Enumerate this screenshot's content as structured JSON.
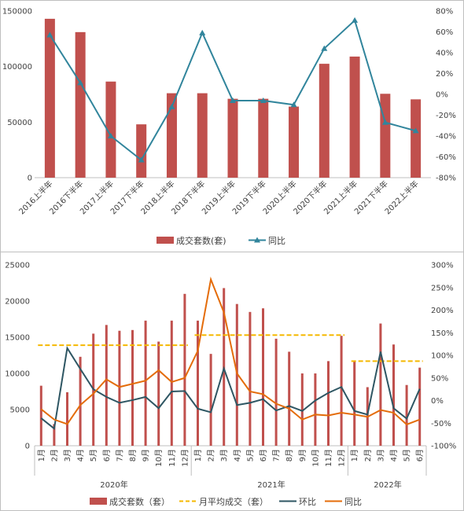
{
  "chart_data": [
    {
      "type": "bar",
      "categories": [
        "2016上半年",
        "2016下半年",
        "2017上半年",
        "2017下半年",
        "2018上半年",
        "2018下半年",
        "2019上半年",
        "2019下半年",
        "2020上半年",
        "2020下半年",
        "2021上半年",
        "2021下半年",
        "2022上半年"
      ],
      "series": [
        {
          "name": "成交套数(套)",
          "type": "bar",
          "axis": "left",
          "color": "#c0504d",
          "values": [
            143000,
            131000,
            86500,
            48000,
            76000,
            76000,
            71000,
            71000,
            64000,
            102500,
            109000,
            75500,
            70500
          ]
        },
        {
          "name": "同比",
          "type": "line",
          "axis": "right",
          "color": "#31859c",
          "marker": "triangle",
          "values": [
            57,
            11,
            -40,
            -63,
            -12,
            59,
            -6,
            -6,
            -10,
            44,
            71,
            -27,
            -35
          ]
        }
      ],
      "left_axis": {
        "min": 0,
        "max": 150000,
        "ticks": [
          "0",
          "50000",
          "100000",
          "150000"
        ]
      },
      "right_axis": {
        "min": -80,
        "max": 80,
        "ticks": [
          "-80%",
          "-60%",
          "-40%",
          "-20%",
          "0%",
          "20%",
          "40%",
          "60%",
          "80%"
        ]
      },
      "legend": {
        "position": "bottom",
        "items": [
          "成交套数(套)",
          "同比"
        ]
      }
    },
    {
      "type": "bar",
      "categories": [
        "1月",
        "2月",
        "3月",
        "4月",
        "5月",
        "6月",
        "7月",
        "8月",
        "9月",
        "10月",
        "11月",
        "12月",
        "1月",
        "2月",
        "3月",
        "4月",
        "5月",
        "6月",
        "7月",
        "8月",
        "9月",
        "10月",
        "11月",
        "12月",
        "1月",
        "2月",
        "3月",
        "4月",
        "5月",
        "6月"
      ],
      "year_groups": [
        {
          "label": "2020年",
          "start": 0,
          "end": 11
        },
        {
          "label": "2021年",
          "start": 12,
          "end": 23
        },
        {
          "label": "2022年",
          "start": 24,
          "end": 29
        }
      ],
      "series": [
        {
          "name": "成交套数（套）",
          "type": "bar",
          "axis": "left",
          "color": "#c0504d",
          "values": [
            8300,
            3000,
            7400,
            12300,
            15500,
            16700,
            15900,
            16000,
            17300,
            14400,
            17300,
            21000,
            17300,
            12700,
            21800,
            19600,
            18500,
            19000,
            14800,
            13000,
            10000,
            10000,
            11700,
            15200,
            11800,
            8100,
            16900,
            14000,
            8400,
            10800
          ]
        },
        {
          "name": "月平均成交（套）",
          "type": "dashed",
          "axis": "left",
          "color": "#f5b800",
          "segments": [
            {
              "start": 0,
              "end": 11,
              "value": 13900
            },
            {
              "start": 12,
              "end": 23,
              "value": 15300
            },
            {
              "start": 24,
              "end": 29,
              "value": 11700
            }
          ]
        },
        {
          "name": "环比",
          "type": "line",
          "axis": "right",
          "color": "#2e5663",
          "values": [
            -39,
            -62,
            116,
            70,
            25,
            8,
            -5,
            1,
            8,
            -17,
            20,
            21,
            -18,
            -26,
            71,
            -10,
            -5,
            3,
            -22,
            -12,
            -23,
            0,
            17,
            30,
            -23,
            -31,
            108,
            -17,
            -40,
            26
          ]
        },
        {
          "name": "同比",
          "type": "line",
          "axis": "right",
          "color": "#e46c0a",
          "values": [
            -19,
            -42,
            -52,
            -10,
            15,
            47,
            30,
            37,
            44,
            67,
            41,
            50,
            110,
            268,
            195,
            60,
            20,
            14,
            -7,
            -18,
            -42,
            -31,
            -33,
            -27,
            -31,
            -36,
            -21,
            -27,
            -53,
            -42
          ]
        }
      ],
      "left_axis": {
        "min": 0,
        "max": 25000,
        "ticks": [
          "0",
          "5000",
          "10000",
          "15000",
          "20000",
          "25000"
        ]
      },
      "right_axis": {
        "min": -100,
        "max": 300,
        "ticks": [
          "-100%",
          "-50%",
          "0%",
          "50%",
          "100%",
          "150%",
          "200%",
          "250%",
          "300%"
        ]
      },
      "legend": {
        "position": "bottom",
        "items": [
          "成交套数（套）",
          "月平均成交（套）",
          "环比",
          "同比"
        ]
      }
    }
  ]
}
